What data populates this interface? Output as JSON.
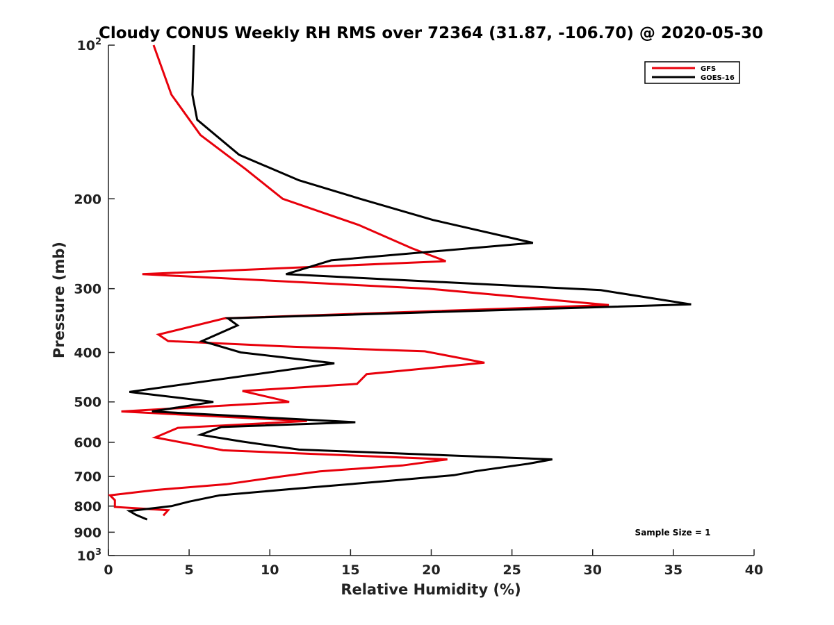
{
  "chart_data": {
    "type": "line",
    "title": "Cloudy CONUS Weekly RH RMS over 72364 (31.87, -106.70) @ 2020-05-30",
    "xlabel": "Relative Humidity (%)",
    "ylabel": "Pressure (mb)",
    "xlim": [
      0,
      40
    ],
    "ylim": [
      100,
      1000
    ],
    "y_scale": "log",
    "y_reversed": true,
    "grid": false,
    "legend_position": "top-right",
    "x_ticks": [
      "0",
      "5",
      "10",
      "15",
      "20",
      "25",
      "30",
      "35",
      "40"
    ],
    "y_ticks": [
      {
        "value": 100,
        "base": "10",
        "exp": "2"
      },
      {
        "value": 200,
        "label": "200"
      },
      {
        "value": 300,
        "label": "300"
      },
      {
        "value": 400,
        "label": "400"
      },
      {
        "value": 500,
        "label": "500"
      },
      {
        "value": 600,
        "label": "600"
      },
      {
        "value": 700,
        "label": "700"
      },
      {
        "value": 800,
        "label": "800"
      },
      {
        "value": 900,
        "label": "900"
      },
      {
        "value": 1000,
        "base": "10",
        "exp": "3"
      }
    ],
    "annotation": "Sample Size = 1",
    "series": [
      {
        "name": "GFS",
        "color": "#e8000b",
        "points": [
          [
            2.8,
            100
          ],
          [
            3.9,
            125
          ],
          [
            5.7,
            150
          ],
          [
            8.5,
            175
          ],
          [
            10.8,
            200
          ],
          [
            15.5,
            225
          ],
          [
            18.8,
            250
          ],
          [
            20.9,
            265
          ],
          [
            2.1,
            281
          ],
          [
            19.8,
            300
          ],
          [
            31.0,
            323
          ],
          [
            7.2,
            343
          ],
          [
            3.1,
            369
          ],
          [
            3.7,
            380
          ],
          [
            11.5,
            390
          ],
          [
            19.6,
            398
          ],
          [
            23.3,
            419
          ],
          [
            16.0,
            441
          ],
          [
            15.4,
            461
          ],
          [
            8.3,
            476
          ],
          [
            11.2,
            500
          ],
          [
            0.8,
            522
          ],
          [
            12.3,
            545
          ],
          [
            4.3,
            562
          ],
          [
            2.9,
            587
          ],
          [
            7.1,
            622
          ],
          [
            21.0,
            648
          ],
          [
            18.2,
            666
          ],
          [
            13.1,
            684
          ],
          [
            10.7,
            700
          ],
          [
            7.3,
            725
          ],
          [
            2.9,
            744
          ],
          [
            0.1,
            762
          ],
          [
            0.4,
            779
          ],
          [
            0.4,
            803
          ],
          [
            3.7,
            815
          ],
          [
            3.4,
            835
          ]
        ]
      },
      {
        "name": "GOES-16",
        "color": "#000000",
        "points": [
          [
            5.3,
            100
          ],
          [
            5.2,
            125
          ],
          [
            5.5,
            140
          ],
          [
            8.1,
            164
          ],
          [
            11.8,
            184
          ],
          [
            15.6,
            200
          ],
          [
            20.1,
            220
          ],
          [
            26.3,
            244
          ],
          [
            13.8,
            264
          ],
          [
            11.0,
            281
          ],
          [
            30.5,
            302
          ],
          [
            36.1,
            322
          ],
          [
            7.4,
            343
          ],
          [
            8.0,
            354
          ],
          [
            5.8,
            380
          ],
          [
            8.2,
            400
          ],
          [
            14.0,
            420
          ],
          [
            1.3,
            478
          ],
          [
            6.5,
            500
          ],
          [
            2.7,
            522
          ],
          [
            15.3,
            548
          ],
          [
            7.0,
            560
          ],
          [
            5.7,
            580
          ],
          [
            8.3,
            598
          ],
          [
            11.8,
            620
          ],
          [
            27.5,
            648
          ],
          [
            26.0,
            661
          ],
          [
            22.8,
            683
          ],
          [
            21.4,
            696
          ],
          [
            16.9,
            716
          ],
          [
            11.5,
            740
          ],
          [
            6.9,
            762
          ],
          [
            5.0,
            784
          ],
          [
            3.9,
            800
          ],
          [
            1.3,
            818
          ],
          [
            1.7,
            832
          ],
          [
            2.4,
            850
          ]
        ]
      }
    ]
  }
}
